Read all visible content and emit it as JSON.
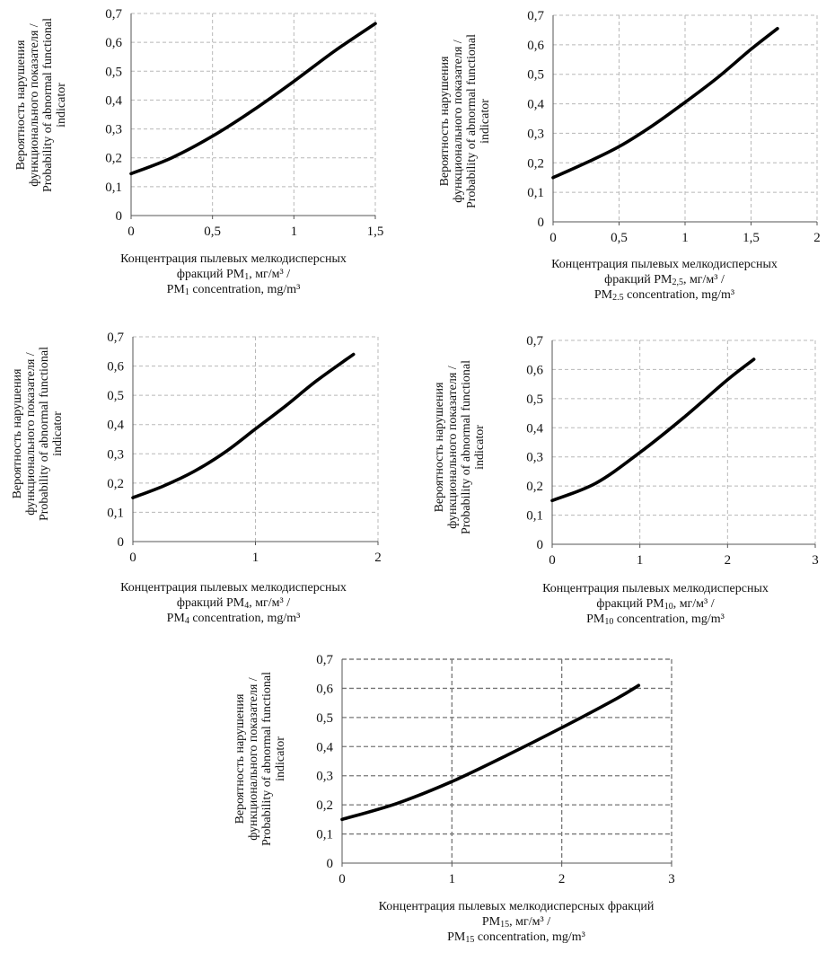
{
  "chart_data": [
    {
      "type": "line",
      "ylabel": [
        "Вероятность нарушения",
        "функционального показателя /",
        "Probability of abnormal functional",
        "indicator"
      ],
      "xlabel_lines": [
        {
          "pre": "Концентрация пылевых мелкодисперсных",
          "sub": "",
          "post": ""
        },
        {
          "pre": "фракций PM",
          "sub": "1",
          "post": ", мг/м³ /"
        },
        {
          "pre": "PM",
          "sub": "1",
          "post": " concentration, mg/m³"
        }
      ],
      "x_ticks": [
        "0",
        "0,5",
        "1",
        "1,5"
      ],
      "y_ticks": [
        "0",
        "0,1",
        "0,2",
        "0,3",
        "0,4",
        "0,5",
        "0,6",
        "0,7"
      ],
      "xlim": [
        0,
        1.5
      ],
      "ylim": [
        0,
        0.7
      ],
      "x_grid": [
        0.5,
        1,
        1.5
      ],
      "y_grid": [
        0.1,
        0.2,
        0.3,
        0.4,
        0.5,
        0.6,
        0.7
      ],
      "series": [
        {
          "x": [
            0,
            0.25,
            0.5,
            0.75,
            1.0,
            1.25,
            1.5
          ],
          "y": [
            0.145,
            0.2,
            0.275,
            0.365,
            0.465,
            0.57,
            0.665
          ]
        }
      ]
    },
    {
      "type": "line",
      "ylabel": [
        "Вероятность нарушения",
        "функционального показателя /",
        "Probability of abnormal functional",
        "indicator"
      ],
      "xlabel_lines": [
        {
          "pre": "Концентрация пылевых мелкодисперсных",
          "sub": "",
          "post": ""
        },
        {
          "pre": "фракций PM",
          "sub": "2,5",
          "post": ", мг/м³ /"
        },
        {
          "pre": "PM",
          "sub": "2.5",
          "post": " concentration, mg/m³"
        }
      ],
      "x_ticks": [
        "0",
        "0,5",
        "1",
        "1,5",
        "2"
      ],
      "y_ticks": [
        "0",
        "0,1",
        "0,2",
        "0,3",
        "0,4",
        "0,5",
        "0,6",
        "0,7"
      ],
      "xlim": [
        0,
        2
      ],
      "ylim": [
        0,
        0.7
      ],
      "x_grid": [
        0.5,
        1,
        1.5,
        2
      ],
      "y_grid": [
        0.1,
        0.2,
        0.3,
        0.4,
        0.5,
        0.6,
        0.7
      ],
      "series": [
        {
          "x": [
            0,
            0.25,
            0.5,
            0.75,
            1.0,
            1.25,
            1.5,
            1.7
          ],
          "y": [
            0.15,
            0.2,
            0.255,
            0.325,
            0.405,
            0.49,
            0.585,
            0.655
          ]
        }
      ]
    },
    {
      "type": "line",
      "ylabel": [
        "Вероятность нарушения",
        "функционального показателя /",
        "Probability of abnormal functional",
        "indicator"
      ],
      "xlabel_lines": [
        {
          "pre": "Концентрация пылевых мелкодисперсных",
          "sub": "",
          "post": ""
        },
        {
          "pre": "фракций PM",
          "sub": "4",
          "post": ", мг/м³ /"
        },
        {
          "pre": "PM",
          "sub": "4",
          "post": " concentration, mg/m³"
        }
      ],
      "x_ticks": [
        "0",
        "1",
        "2"
      ],
      "y_ticks": [
        "0",
        "0,1",
        "0,2",
        "0,3",
        "0,4",
        "0,5",
        "0,6",
        "0,7"
      ],
      "xlim": [
        0,
        2
      ],
      "ylim": [
        0,
        0.7
      ],
      "x_grid": [
        1,
        2
      ],
      "y_grid": [
        0.1,
        0.2,
        0.3,
        0.4,
        0.5,
        0.6,
        0.7
      ],
      "series": [
        {
          "x": [
            0,
            0.25,
            0.5,
            0.75,
            1.0,
            1.25,
            1.5,
            1.8
          ],
          "y": [
            0.15,
            0.19,
            0.24,
            0.305,
            0.385,
            0.465,
            0.55,
            0.64
          ]
        }
      ]
    },
    {
      "type": "line",
      "ylabel": [
        "Вероятность нарушения",
        "функционального показателя /",
        "Probability of abnormal functional",
        "indicator"
      ],
      "xlabel_lines": [
        {
          "pre": "Концентрация пылевых мелкодисперсных",
          "sub": "",
          "post": ""
        },
        {
          "pre": "фракций PM",
          "sub": "10",
          "post": ", мг/м³ /"
        },
        {
          "pre": "PM",
          "sub": "10",
          "post": " concentration, mg/m³"
        }
      ],
      "x_ticks": [
        "0",
        "1",
        "2",
        "3"
      ],
      "y_ticks": [
        "0",
        "0,1",
        "0,2",
        "0,3",
        "0,4",
        "0,5",
        "0,6",
        "0,7"
      ],
      "xlim": [
        0,
        3
      ],
      "ylim": [
        0,
        0.7
      ],
      "x_grid": [
        1,
        2,
        3
      ],
      "y_grid": [
        0.1,
        0.2,
        0.3,
        0.4,
        0.5,
        0.6,
        0.7
      ],
      "series": [
        {
          "x": [
            0,
            0.5,
            1.0,
            1.5,
            2.0,
            2.3
          ],
          "y": [
            0.15,
            0.21,
            0.315,
            0.435,
            0.565,
            0.635
          ]
        }
      ]
    },
    {
      "type": "line",
      "ylabel": [
        "Вероятность нарушения",
        "функционального показателя /",
        "Probability of abnormal functional",
        "indicator"
      ],
      "xlabel_lines": [
        {
          "pre": "Концентрация пылевых мелкодисперсных фракций",
          "sub": "",
          "post": ""
        },
        {
          "pre": "PM",
          "sub": "15",
          "post": ", мг/м³ /"
        },
        {
          "pre": "PM",
          "sub": "15",
          "post": " concentration, mg/m³"
        }
      ],
      "x_ticks": [
        "0",
        "1",
        "2",
        "3"
      ],
      "y_ticks": [
        "0",
        "0,1",
        "0,2",
        "0,3",
        "0,4",
        "0,5",
        "0,6",
        "0,7"
      ],
      "xlim": [
        0,
        3
      ],
      "ylim": [
        0,
        0.7
      ],
      "x_grid": [
        1,
        2,
        3
      ],
      "y_grid": [
        0.1,
        0.2,
        0.3,
        0.4,
        0.5,
        0.6,
        0.7
      ],
      "series": [
        {
          "x": [
            0,
            0.5,
            1.0,
            1.5,
            2.0,
            2.5,
            2.7
          ],
          "y": [
            0.15,
            0.205,
            0.28,
            0.37,
            0.465,
            0.565,
            0.61
          ]
        }
      ]
    }
  ]
}
